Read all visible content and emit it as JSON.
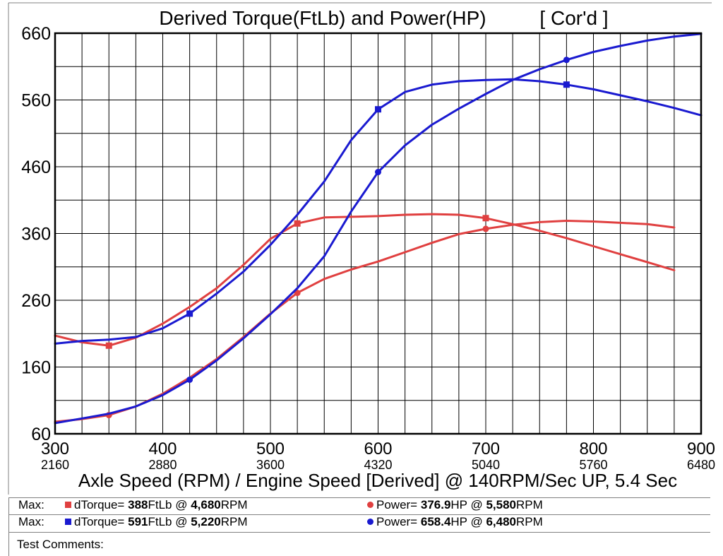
{
  "colors": {
    "red": "#e04040",
    "blue": "#1a1ad0",
    "grid": "#000000"
  },
  "chart_data": {
    "type": "line",
    "title": "Derived Torque(FtLb) and Power(HP)",
    "title_tag": "[ Cor'd ]",
    "xlabel": "Axle Speed (RPM) / Engine Speed [Derived] @ 140RPM/Sec UP, 5.4 Sec",
    "xlim": [
      300,
      900
    ],
    "ylim": [
      60,
      660
    ],
    "y_ticks": [
      "660",
      "560",
      "460",
      "360",
      "260",
      "160",
      "60"
    ],
    "x_ticks": [
      "300",
      "400",
      "500",
      "600",
      "700",
      "800",
      "900"
    ],
    "x_ticks_engine": [
      "2160",
      "2880",
      "3600",
      "4320",
      "5040",
      "5760",
      "6480"
    ],
    "grid": true,
    "series": [
      {
        "color": "red",
        "marker": "square",
        "x": [
          300,
          325,
          350,
          375,
          400,
          425,
          450,
          475,
          500,
          525,
          550,
          575,
          600,
          625,
          650,
          675,
          700,
          725,
          750,
          775,
          800,
          825,
          850,
          875
        ],
        "y": [
          207,
          197,
          192,
          204,
          225,
          250,
          278,
          313,
          352,
          375,
          384,
          385,
          386,
          388,
          389,
          388,
          383,
          374,
          364,
          353,
          341,
          329,
          317,
          305
        ],
        "marker_x": [
          350,
          525,
          700
        ]
      },
      {
        "color": "red",
        "marker": "circle",
        "x": [
          300,
          325,
          350,
          375,
          400,
          425,
          450,
          475,
          500,
          525,
          550,
          575,
          600,
          625,
          650,
          675,
          700,
          725,
          750,
          775,
          800,
          825,
          850,
          875
        ],
        "y": [
          78,
          82,
          88,
          101,
          120,
          144,
          172,
          205,
          240,
          271,
          292,
          306,
          318,
          332,
          346,
          359,
          367,
          373,
          377,
          379,
          378,
          376,
          374,
          369
        ],
        "marker_x": [
          350,
          525,
          700
        ]
      },
      {
        "color": "blue",
        "marker": "square",
        "x": [
          300,
          325,
          350,
          375,
          400,
          425,
          450,
          475,
          500,
          525,
          550,
          575,
          600,
          625,
          650,
          675,
          700,
          725,
          750,
          775,
          800,
          825,
          850,
          875,
          900
        ],
        "y": [
          195,
          199,
          201,
          205,
          218,
          240,
          270,
          303,
          343,
          388,
          438,
          500,
          546,
          572,
          583,
          588,
          590,
          591,
          588,
          583,
          576,
          567,
          558,
          548,
          537
        ],
        "marker_x": [
          425,
          600,
          775
        ]
      },
      {
        "color": "blue",
        "marker": "circle",
        "x": [
          300,
          325,
          350,
          375,
          400,
          425,
          450,
          475,
          500,
          525,
          550,
          575,
          600,
          625,
          650,
          675,
          700,
          725,
          750,
          775,
          800,
          825,
          850,
          875,
          900
        ],
        "y": [
          76,
          83,
          90,
          101,
          118,
          141,
          170,
          203,
          239,
          278,
          326,
          393,
          452,
          492,
          523,
          547,
          569,
          590,
          606,
          620,
          632,
          641,
          649,
          655,
          659
        ],
        "marker_x": [
          425,
          600,
          775
        ]
      }
    ]
  },
  "summary": {
    "rows": [
      {
        "prefix": "Max:",
        "color": "red",
        "torque_label": "dTorque=",
        "torque_value": "388",
        "torque_unit": "FtLb @",
        "torque_rpm": "4,680",
        "torque_rpm_unit": "RPM",
        "power_label": "Power=",
        "power_value": "376.9",
        "power_unit": "HP @",
        "power_rpm": "5,580",
        "power_rpm_unit": "RPM"
      },
      {
        "prefix": "Max:",
        "color": "blue",
        "torque_label": "dTorque=",
        "torque_value": "591",
        "torque_unit": "FtLb @",
        "torque_rpm": "5,220",
        "torque_rpm_unit": "RPM",
        "power_label": "Power=",
        "power_value": "658.4",
        "power_unit": "HP @",
        "power_rpm": "6,480",
        "power_rpm_unit": "RPM"
      }
    ],
    "comments_label": "Test Comments:"
  }
}
